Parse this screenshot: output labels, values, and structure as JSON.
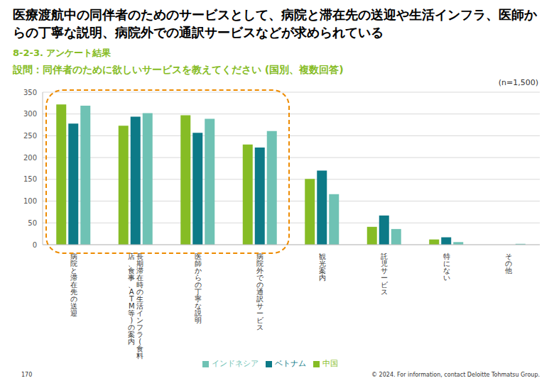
{
  "chart_data": {
    "type": "bar",
    "title": "医療渡航中の同伴者のためのサービスとして、病院と滞在先の送迎や生活インフラ、医師からの丁寧な説明、病院外での通訳サービスなどが求められている",
    "subtitle": "8-2-3. アンケート結果",
    "question": "設問：同伴者のために欲しいサービスを教えてください (国別、複数回答)",
    "note": "(n=1,500)",
    "page_number": "170",
    "footer": "© 2024. For information, contact Deloitte Tohmatsu Group.",
    "categories": [
      "病院と滞在先の送迎",
      "長期滞在時の生活インフラ(食料店、食事、ATM等)の案内",
      "医師からの丁寧な説明",
      "病院外での通訳サービス",
      "観光案内",
      "託児サービス",
      "特にない",
      "その他"
    ],
    "series": [
      {
        "name": "中国",
        "color": "#86bc25",
        "values": [
          322,
          273,
          297,
          230,
          151,
          41,
          12,
          0
        ]
      },
      {
        "name": "ベトナム",
        "color": "#0d7a87",
        "values": [
          278,
          294,
          257,
          223,
          170,
          67,
          17,
          0
        ]
      },
      {
        "name": "インドネシア",
        "color": "#6fc2b4",
        "values": [
          319,
          302,
          289,
          261,
          116,
          36,
          6,
          2
        ]
      }
    ],
    "ylim": [
      0,
      350
    ],
    "yticks": [
      0,
      50,
      100,
      150,
      200,
      250,
      300,
      350
    ],
    "grid": true,
    "legend": "bottom"
  }
}
